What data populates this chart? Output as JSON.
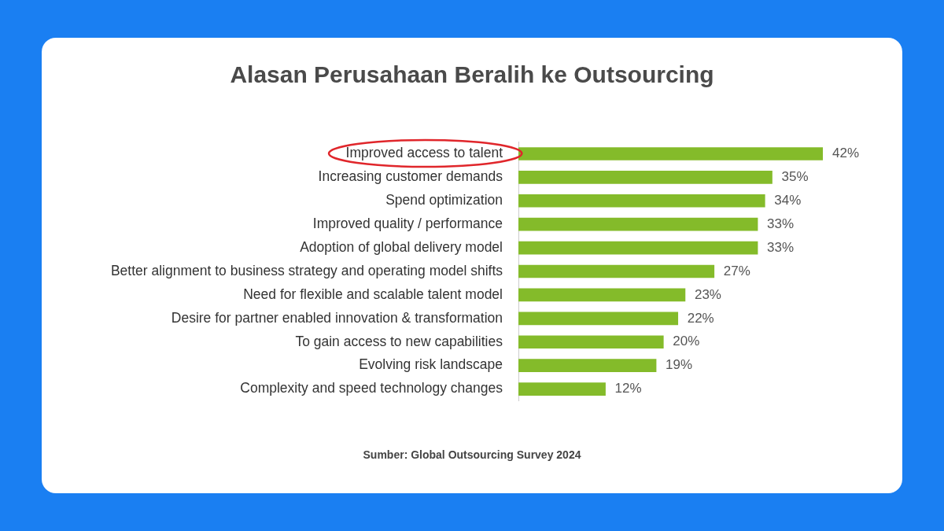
{
  "chart_data": {
    "type": "bar",
    "orientation": "horizontal",
    "title": "Alasan Perusahaan Beralih ke Outsourcing",
    "categories": [
      "Improved access to talent",
      "Increasing customer demands",
      "Spend optimization",
      "Improved quality / performance",
      "Adoption of global delivery model",
      "Better alignment to business strategy and operating model shifts",
      "Need for flexible and scalable talent model",
      "Desire for partner enabled innovation & transformation",
      "To gain access to new capabilities",
      "Evolving risk landscape",
      "Complexity and speed technology changes"
    ],
    "values": [
      42,
      35,
      34,
      33,
      33,
      27,
      23,
      22,
      20,
      19,
      12
    ],
    "value_labels": [
      "42%",
      "35%",
      "34%",
      "33%",
      "33%",
      "27%",
      "23%",
      "22%",
      "20%",
      "19%",
      "12%"
    ],
    "color": "#84bb2a",
    "legend": false,
    "tick_labels": "y",
    "annotations": [
      "Sumber: Global Outsourcing Survey 2024"
    ]
  }
}
